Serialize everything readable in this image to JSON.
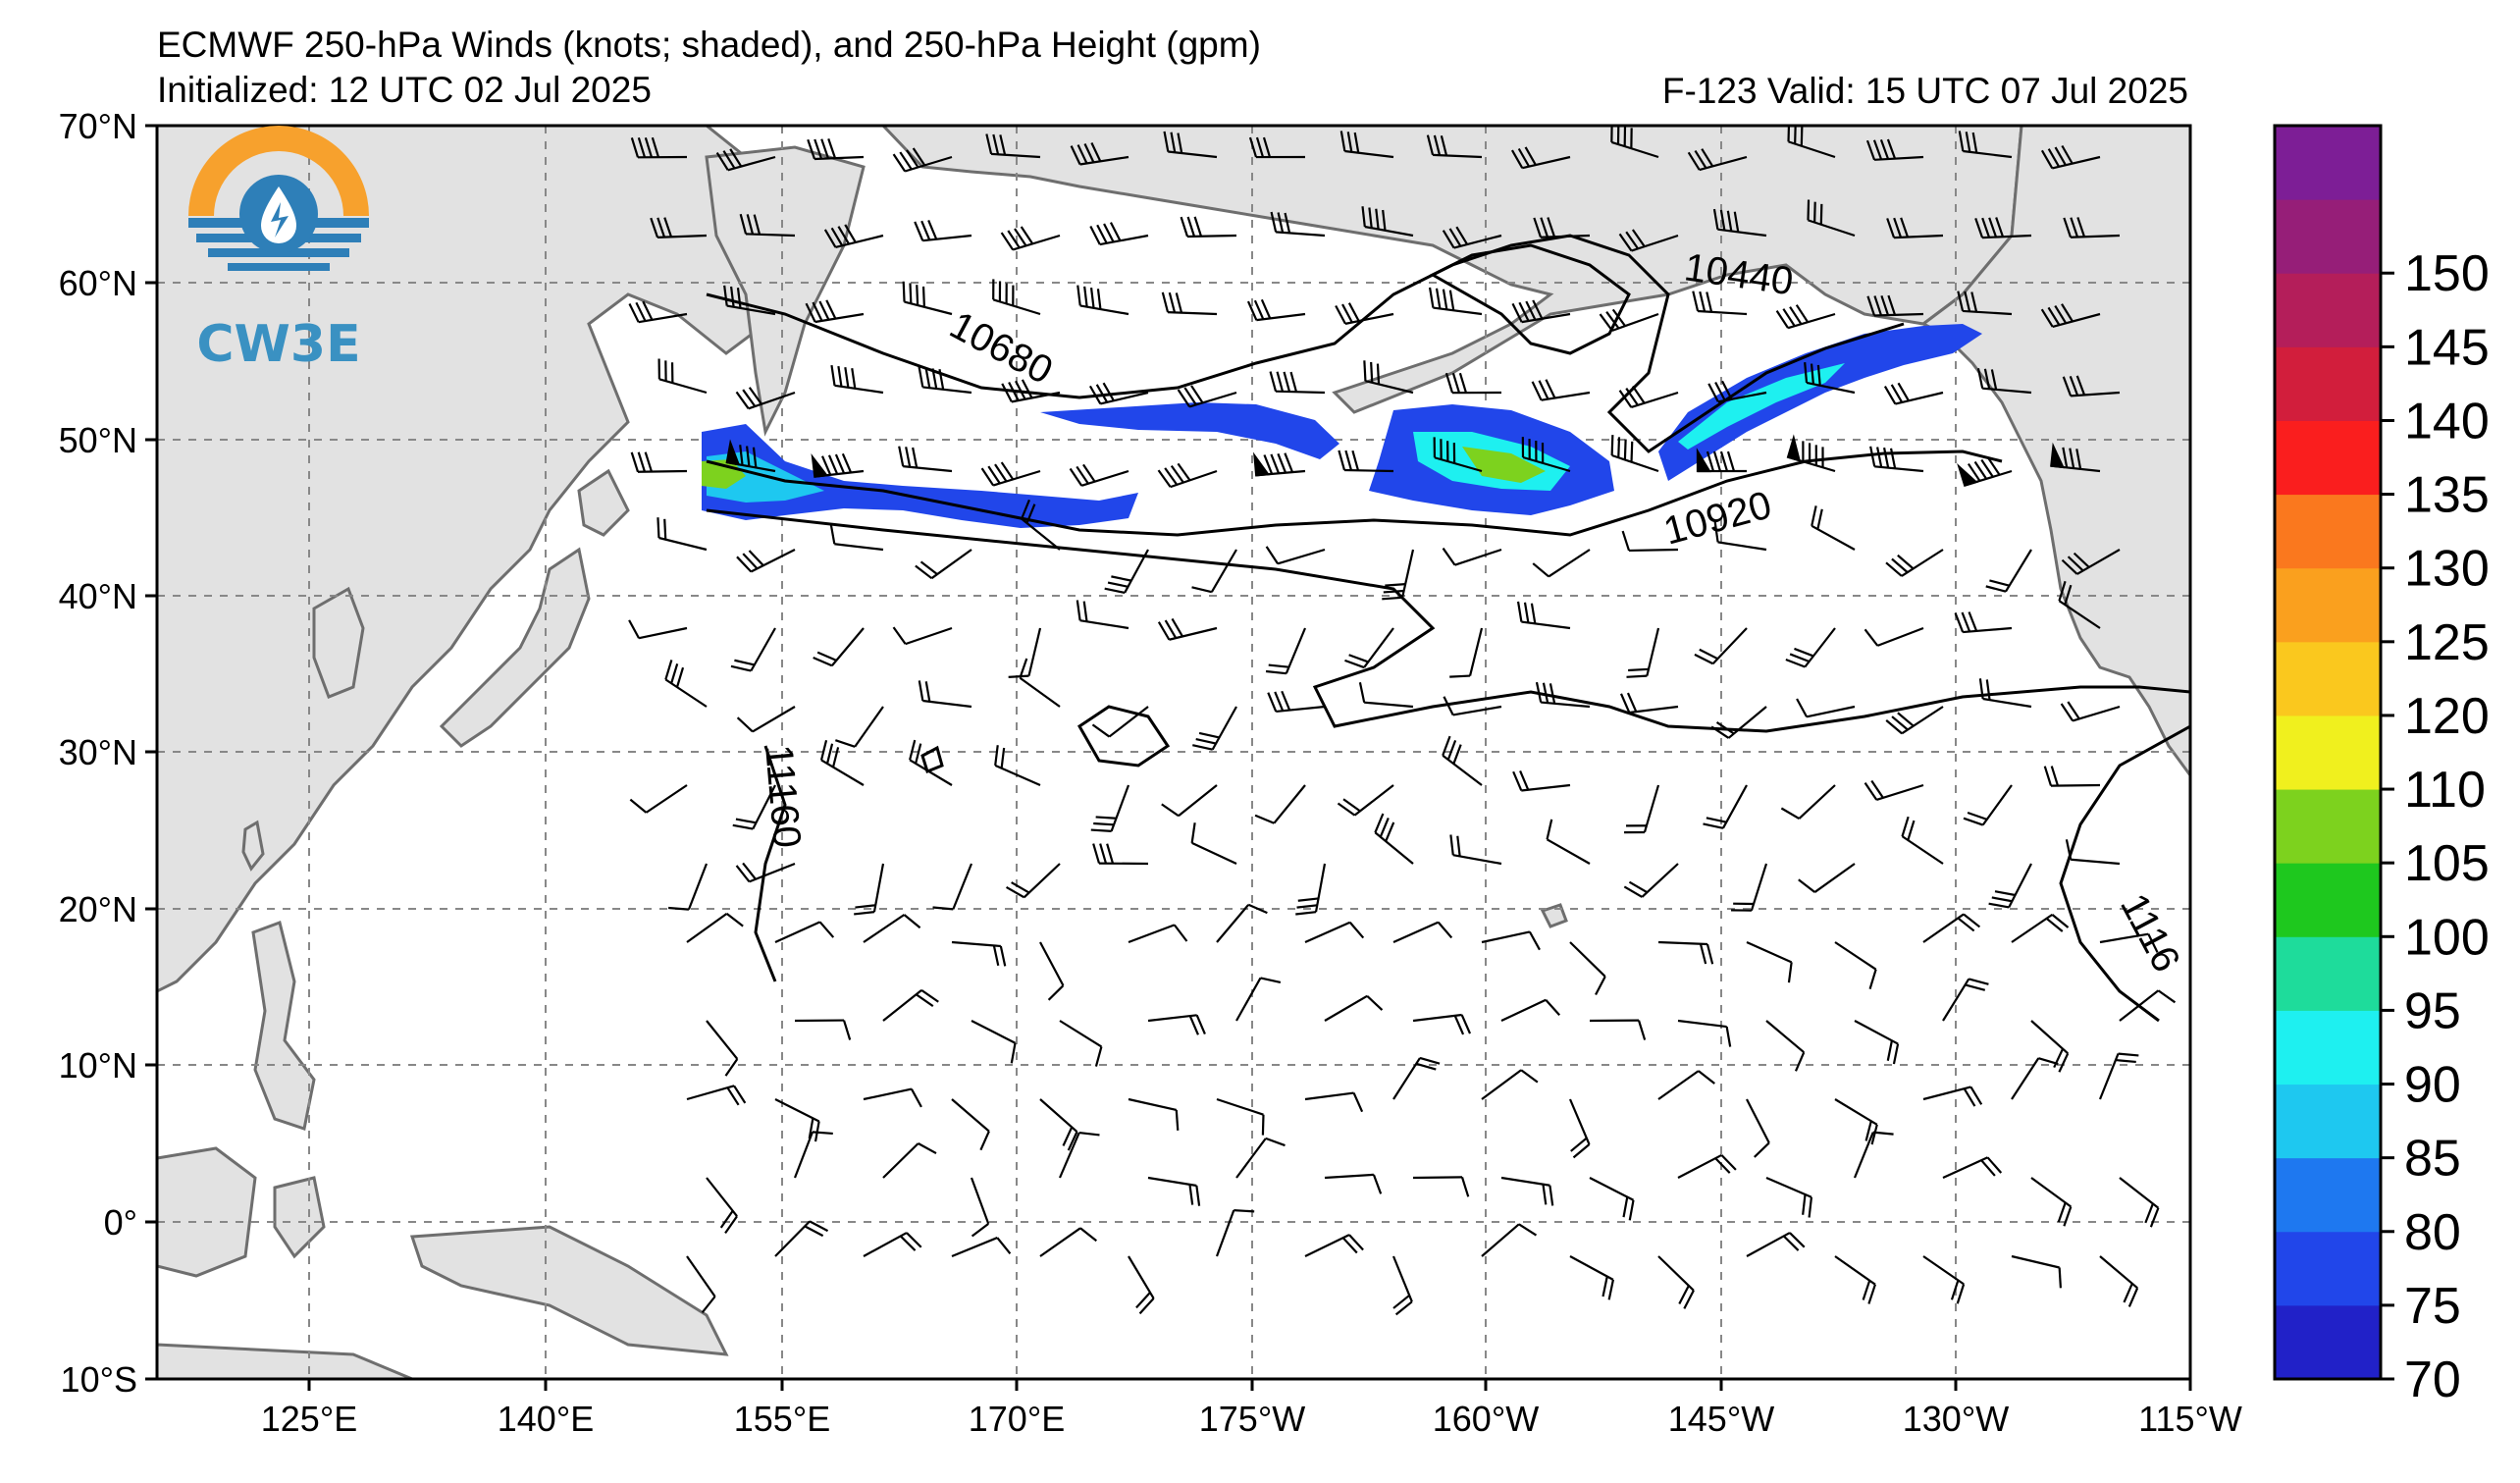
{
  "title": {
    "line1": "ECMWF 250-hPa Winds (knots; shaded), and 250-hPa Height (gpm)",
    "line2": "Initialized: 12 UTC 02 Jul 2025",
    "valid": "F-123  Valid: 15 UTC 07 Jul 2025"
  },
  "logo": {
    "text": "CW3E",
    "icon": "water-drop-sun-icon"
  },
  "axes": {
    "lat_labels": [
      "70°N",
      "60°N",
      "50°N",
      "40°N",
      "30°N",
      "20°N",
      "10°N",
      "0°",
      "10°S"
    ],
    "lon_labels": [
      "125°E",
      "140°E",
      "155°E",
      "170°E",
      "175°W",
      "160°W",
      "145°W",
      "130°W",
      "115°W"
    ]
  },
  "contour_labels": [
    "10680",
    "10440",
    "10920",
    "11160",
    "1116"
  ],
  "colorbar": {
    "labels": [
      "70",
      "75",
      "80",
      "85",
      "90",
      "95",
      "100",
      "105",
      "110",
      "120",
      "125",
      "130",
      "135",
      "140",
      "145",
      "150"
    ],
    "colors": [
      "#2121c8",
      "#2146ea",
      "#1e78f0",
      "#1ec8f0",
      "#1ef0f0",
      "#1edc9b",
      "#1ec81e",
      "#7dd21e",
      "#f0f01e",
      "#fac81e",
      "#faa01e",
      "#fa781e",
      "#fa1e1e",
      "#d21e3c",
      "#b41e5a",
      "#961e78",
      "#7d1e96"
    ]
  },
  "map": {
    "land_color": "#e2e2e2",
    "coast_color": "#6e6e6e"
  }
}
